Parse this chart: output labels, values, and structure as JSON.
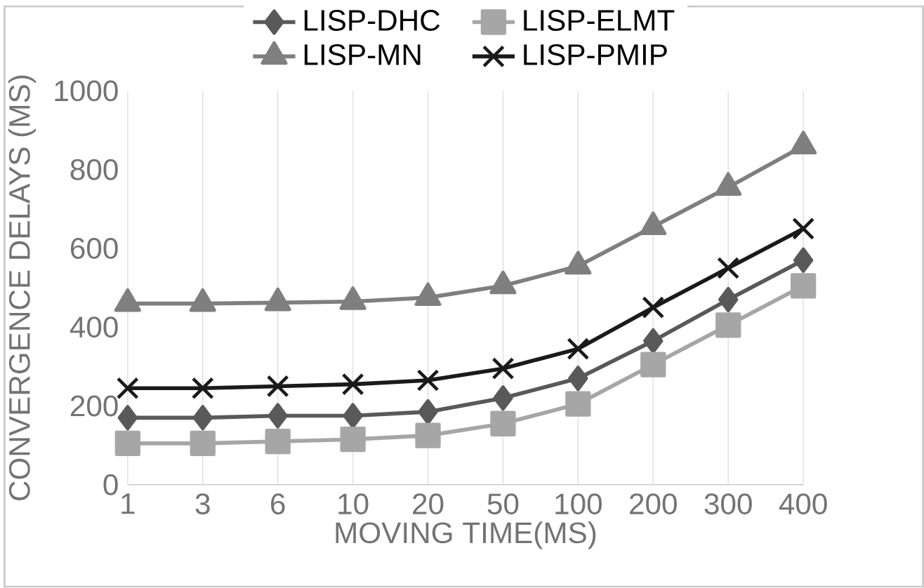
{
  "chart_data": {
    "type": "line",
    "xlabel": "MOVING TIME(MS)",
    "ylabel": "CONVERGENCE DELAYS (MS)",
    "categories": [
      "1",
      "3",
      "6",
      "10",
      "20",
      "50",
      "100",
      "200",
      "300",
      "400"
    ],
    "series": [
      {
        "name": "LISP-DHC",
        "color": "#595959",
        "marker": "diamond",
        "values": [
          170,
          170,
          175,
          175,
          185,
          220,
          270,
          365,
          470,
          570
        ]
      },
      {
        "name": "LISP-ELMT",
        "color": "#a6a6a6",
        "marker": "square",
        "values": [
          105,
          105,
          110,
          115,
          125,
          155,
          205,
          305,
          405,
          505
        ]
      },
      {
        "name": "LISP-MN",
        "color": "#7f7f7f",
        "marker": "triangle",
        "values": [
          460,
          460,
          462,
          465,
          475,
          505,
          555,
          655,
          755,
          860
        ]
      },
      {
        "name": "LISP-PMIP",
        "color": "#1a1a1a",
        "marker": "cross",
        "values": [
          245,
          245,
          250,
          255,
          265,
          295,
          345,
          450,
          550,
          650
        ]
      }
    ],
    "ylim": [
      0,
      1000
    ],
    "yticks": [
      0,
      200,
      400,
      600,
      800,
      1000
    ],
    "grid": "x",
    "legend": "top",
    "line_style": "solid"
  }
}
